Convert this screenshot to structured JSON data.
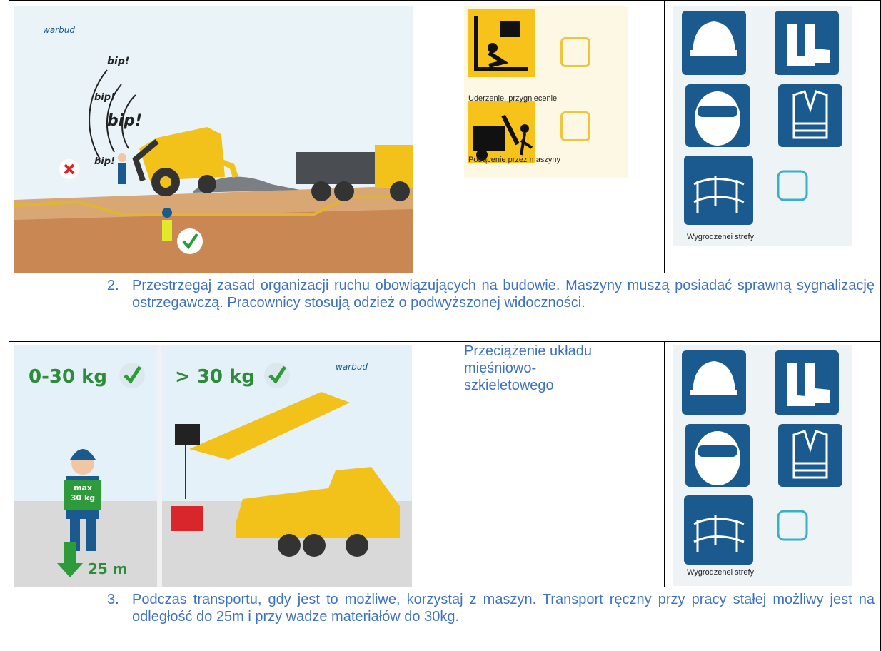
{
  "table": {
    "rows": [
      {
        "illustration": {
          "logo": "warbud",
          "sounds": [
            "bip!",
            "bip!",
            "bip!",
            "bip!"
          ]
        },
        "hazards": [
          "Uderzenie, przygniecenie",
          "Potrącenie przez maszyny"
        ],
        "ppe_label": "Wygrodzenei strefy"
      },
      {
        "number": "2.",
        "text": "Przestrzegaj zasad organizacji ruchu obowiązujących na budowie. Maszyny muszą posiadać sprawną sygnalizację ostrzegawczą. Pracownicy stosują odzież o podwyższonej widoczności."
      },
      {
        "illustration": {
          "logo": "warbud",
          "left_label": "0-30 kg",
          "right_label": "> 30 kg",
          "badge_top": "max",
          "badge_bottom": "30 kg",
          "distance": "25 m"
        },
        "hazard_text": "Przeciążenie układu mięśniowo-szkieletowego",
        "ppe_label": "Wygrodzenei strefy"
      },
      {
        "number": "3.",
        "text": "Podczas transportu, gdy jest to możliwe, korzystaj z maszyn. Transport ręczny przy pracy stałej możliwy jest na odległość do 25m i przy wadze materiałów do 30kg."
      }
    ]
  }
}
